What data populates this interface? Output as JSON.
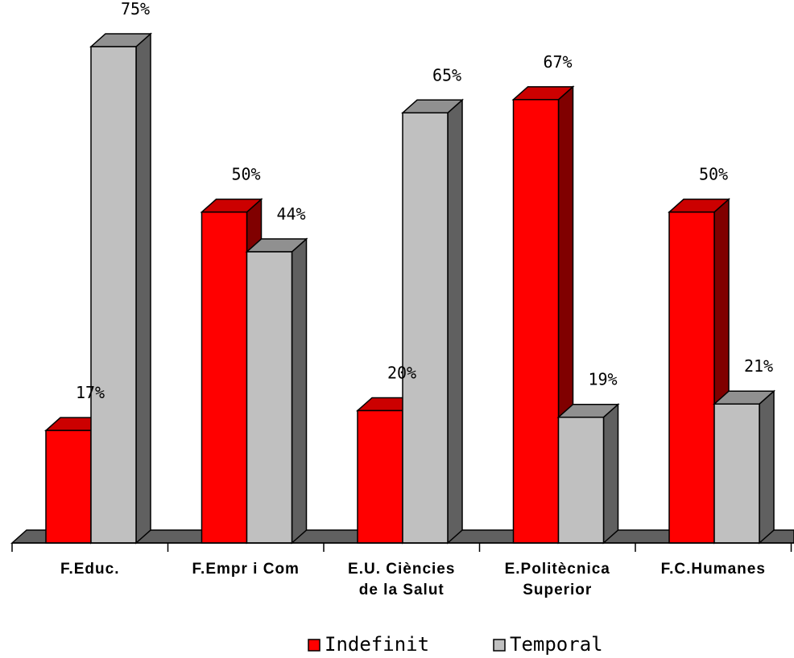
{
  "chart_data": {
    "type": "bar",
    "style": "3d-clustered",
    "categories": [
      [
        "F.Educ."
      ],
      [
        "F.Empr i Com"
      ],
      [
        "E.U. Ciències",
        "de la Salut"
      ],
      [
        "E.Politècnica",
        "Superior"
      ],
      [
        "F.C.Humanes"
      ]
    ],
    "series": [
      {
        "name": "Indefinit",
        "color": "#FF0000",
        "side_color": "#800000",
        "values": [
          17,
          50,
          20,
          67,
          50
        ],
        "labels": [
          "17%",
          "50%",
          "20%",
          "67%",
          "50%"
        ]
      },
      {
        "name": "Temporal",
        "color": "#C0C0C0",
        "side_color": "#606060",
        "values": [
          75,
          44,
          65,
          19,
          21
        ],
        "labels": [
          "75%",
          "44%",
          "65%",
          "19%",
          "21%"
        ]
      }
    ],
    "ylim": [
      0,
      75
    ],
    "grid": false,
    "legend_position": "bottom"
  }
}
